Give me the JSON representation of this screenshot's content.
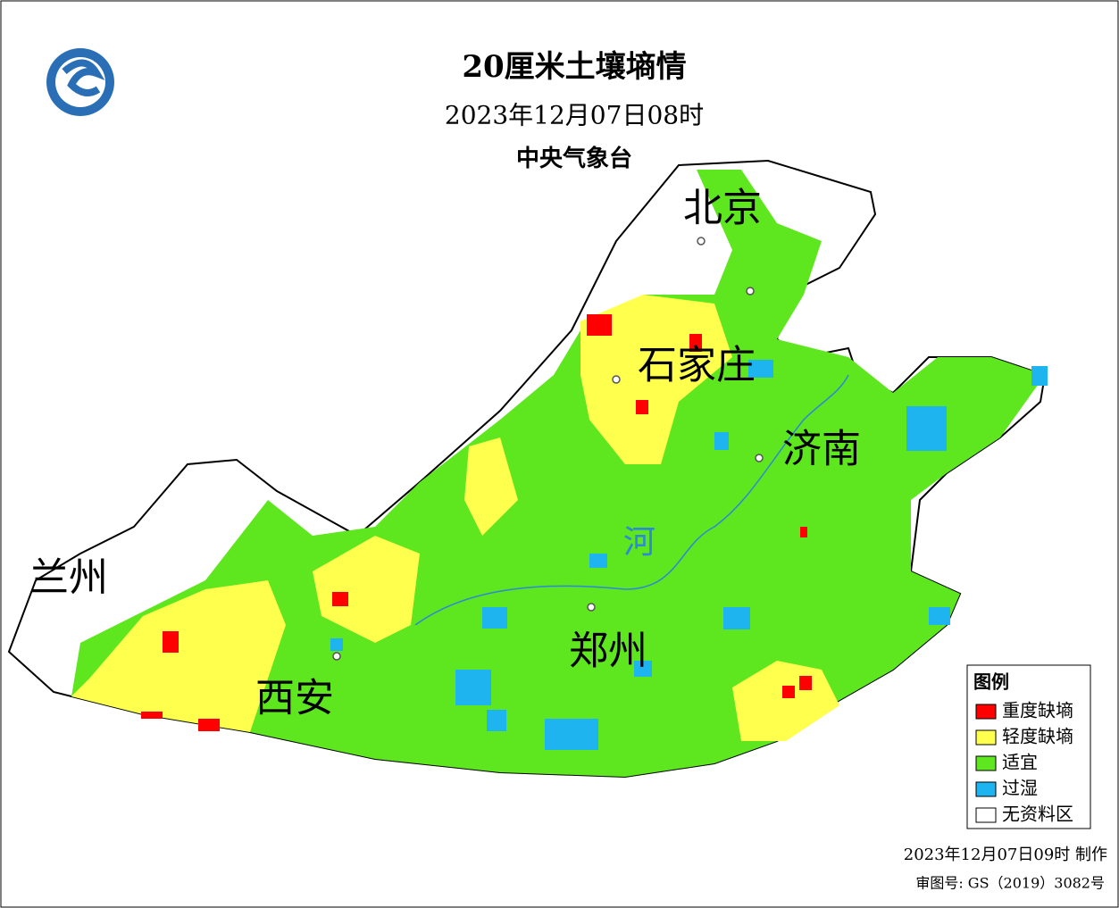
{
  "header": {
    "title": "20厘米土壤墒情",
    "time": "2023年12月07日08时",
    "agency": "中央气象台"
  },
  "cities": [
    "北京",
    "石家庄",
    "济南",
    "郑州",
    "西安",
    "兰州"
  ],
  "river_label": "河",
  "legend": {
    "title": "图例",
    "items": [
      {
        "label": "重度缺墒",
        "color": "#ff0000"
      },
      {
        "label": "轻度缺墒",
        "color": "#ffff4d"
      },
      {
        "label": "适宜",
        "color": "#5ee61e"
      },
      {
        "label": "过湿",
        "color": "#1eb4f0"
      },
      {
        "label": "无资料区",
        "color": "#ffffff"
      }
    ]
  },
  "footer": {
    "made": "2023年12月07日09时 制作",
    "approval": "审图号: GS（2019）3082号"
  }
}
